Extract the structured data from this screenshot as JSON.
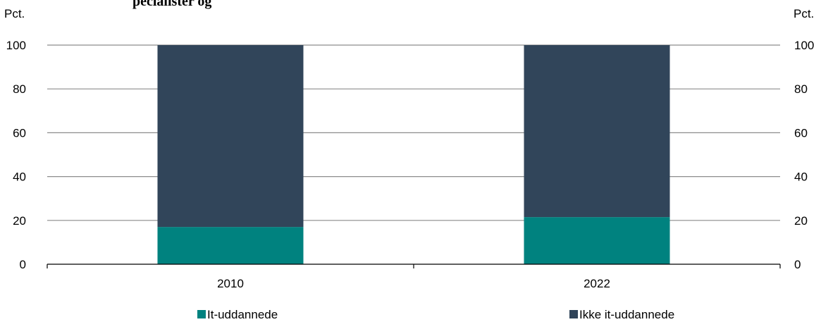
{
  "header_fragment": "pecialister og",
  "chart_data": {
    "type": "bar",
    "stacked": true,
    "categories": [
      "2010",
      "2022"
    ],
    "series": [
      {
        "name": "It-uddannede",
        "values": [
          17,
          21.5
        ],
        "color": "#00827f"
      },
      {
        "name": "Ikke it-uddannede",
        "values": [
          83,
          78.5
        ],
        "color": "#31455a"
      }
    ],
    "ylim": [
      0,
      100
    ],
    "yticks": [
      0,
      20,
      40,
      60,
      80,
      100
    ],
    "ylabel_left": "Pct.",
    "ylabel_right": "Pct.",
    "grid": true,
    "legend_position": "bottom"
  }
}
